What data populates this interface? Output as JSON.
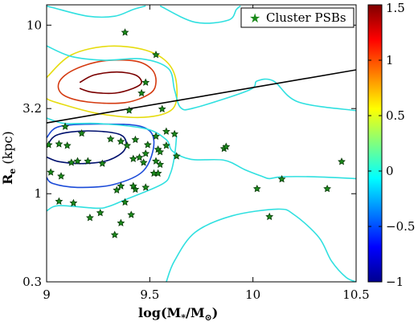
{
  "chart_data": {
    "type": "scatter",
    "x_axis": {
      "label_main": "log(M",
      "label_sub1": "*",
      "label_mid": "/M",
      "label_sub2": "⊙",
      "label_end": ")",
      "range": [
        9.0,
        10.5
      ],
      "ticks": [
        9.0,
        9.5,
        10.0,
        10.5
      ],
      "tick_labels": [
        "9",
        "9.5",
        "10",
        "10.5"
      ]
    },
    "y_axis": {
      "label_main": "R",
      "label_sub": "e",
      "label_end": " (kpc)",
      "scale": "log",
      "range": [
        0.3,
        13.2
      ],
      "ticks": [
        0.3,
        1.0,
        3.2,
        10.0
      ],
      "tick_labels": [
        "0.3",
        "1",
        "3.2",
        "10"
      ]
    },
    "colorbar": {
      "range": [
        -1.0,
        1.5
      ],
      "ticks": [
        -1.0,
        -0.5,
        0.0,
        0.5,
        1.0,
        1.5
      ],
      "tick_labels": [
        "−1",
        "−0.5",
        "0",
        "0.5",
        "1",
        "1.5"
      ],
      "colormap": "jet"
    },
    "legend": {
      "label": "Cluster PSBs",
      "placement": "top-right",
      "marker_color": "#1a8a1a"
    },
    "reference_line": {
      "color": "#000000",
      "points": [
        [
          9.0,
          2.63
        ],
        [
          10.5,
          5.43
        ]
      ]
    },
    "contours": [
      {
        "level": 1.4,
        "color": "#7a0000",
        "points": [
          [
            9.16,
            4.57
          ],
          [
            9.23,
            5.06
          ],
          [
            9.34,
            5.27
          ],
          [
            9.43,
            5.06
          ],
          [
            9.46,
            4.57
          ],
          [
            9.42,
            4.22
          ],
          [
            9.33,
            3.95
          ],
          [
            9.22,
            4.0
          ],
          [
            9.16,
            4.22
          ]
        ]
      },
      {
        "level": 1.2,
        "color": "#d43a10",
        "points": [
          [
            9.06,
            4.57
          ],
          [
            9.13,
            5.42
          ],
          [
            9.27,
            6.12
          ],
          [
            9.43,
            6.12
          ],
          [
            9.51,
            5.46
          ],
          [
            9.53,
            4.57
          ],
          [
            9.5,
            3.92
          ],
          [
            9.38,
            3.47
          ],
          [
            9.2,
            3.5
          ],
          [
            9.08,
            3.86
          ]
        ]
      },
      {
        "level": 0.5,
        "color": "#e6dc10",
        "points": [
          [
            9.0,
            4.89
          ],
          [
            9.12,
            6.66
          ],
          [
            9.3,
            7.5
          ],
          [
            9.48,
            7.1
          ],
          [
            9.59,
            5.92
          ],
          [
            9.63,
            4.44
          ],
          [
            9.61,
            3.18
          ],
          [
            9.47,
            2.84
          ],
          [
            9.25,
            2.99
          ],
          [
            9.05,
            3.47
          ],
          [
            9.0,
            3.66
          ]
        ]
      },
      {
        "level": -0.7,
        "color": "#1a4ad8",
        "points": [
          [
            9.0,
            2.15
          ],
          [
            9.06,
            2.5
          ],
          [
            9.25,
            2.59
          ],
          [
            9.46,
            2.5
          ],
          [
            9.52,
            2.04
          ],
          [
            9.47,
            1.37
          ],
          [
            9.32,
            1.13
          ],
          [
            9.15,
            1.09
          ],
          [
            9.03,
            1.15
          ],
          [
            9.0,
            1.25
          ]
        ]
      },
      {
        "level": -0.9,
        "color": "#00106e",
        "points": [
          [
            9.0,
            1.89
          ],
          [
            9.05,
            2.23
          ],
          [
            9.2,
            2.36
          ],
          [
            9.36,
            2.23
          ],
          [
            9.38,
            1.84
          ],
          [
            9.3,
            1.58
          ],
          [
            9.18,
            1.51
          ],
          [
            9.06,
            1.55
          ],
          [
            9.0,
            1.65
          ]
        ]
      },
      {
        "level": 0.05,
        "color": "#30e0e0",
        "points": [
          [
            9.0,
            7.54
          ],
          [
            9.12,
            6.52
          ],
          [
            9.28,
            6.19
          ],
          [
            9.46,
            6.31
          ],
          [
            9.59,
            5.53
          ],
          [
            9.62,
            4.13
          ],
          [
            9.65,
            3.24
          ],
          [
            9.72,
            3.24
          ],
          [
            9.98,
            4.11
          ],
          [
            10.02,
            4.66
          ],
          [
            10.1,
            4.66
          ],
          [
            10.22,
            3.5
          ],
          [
            10.5,
            3.11
          ]
        ]
      },
      {
        "level": 0.05,
        "color": "#30e0e0",
        "points": [
          [
            9.0,
            2.81
          ],
          [
            9.09,
            2.61
          ],
          [
            9.25,
            2.61
          ],
          [
            9.48,
            2.43
          ],
          [
            9.58,
            2.09
          ],
          [
            9.61,
            1.79
          ],
          [
            9.7,
            1.6
          ],
          [
            9.86,
            1.58
          ],
          [
            9.96,
            1.39
          ],
          [
            10.05,
            1.26
          ],
          [
            10.08,
            1.23
          ],
          [
            10.14,
            1.26
          ],
          [
            10.3,
            1.26
          ],
          [
            10.5,
            1.23
          ]
        ]
      },
      {
        "level": 0.05,
        "color": "#30e0e0",
        "points": [
          [
            9.0,
            13.0
          ],
          [
            9.03,
            12.7
          ],
          [
            9.2,
            11.3
          ],
          [
            9.33,
            11.3
          ],
          [
            9.42,
            12.4
          ],
          [
            9.48,
            13.0
          ]
        ]
      },
      {
        "level": 0.05,
        "color": "#30e0e0",
        "points": [
          [
            9.55,
            13.0
          ],
          [
            9.72,
            10.4
          ],
          [
            9.88,
            10.7
          ],
          [
            9.92,
            12.4
          ],
          [
            9.94,
            13.0
          ]
        ]
      },
      {
        "level": 0.05,
        "color": "#30e0e0",
        "points": [
          [
            9.0,
            0.79
          ],
          [
            9.06,
            0.85
          ],
          [
            9.24,
            0.82
          ],
          [
            9.3,
            0.84
          ],
          [
            9.38,
            0.92
          ],
          [
            9.56,
            1.14
          ],
          [
            9.6,
            1.32
          ],
          [
            9.62,
            1.67
          ],
          [
            9.63,
            2.21
          ]
        ]
      },
      {
        "level": 0.05,
        "color": "#30e0e0",
        "points": [
          [
            9.58,
            0.3
          ],
          [
            9.62,
            0.4
          ],
          [
            9.72,
            0.59
          ],
          [
            9.9,
            0.74
          ],
          [
            10.12,
            0.81
          ],
          [
            10.2,
            0.75
          ],
          [
            10.32,
            0.55
          ],
          [
            10.38,
            0.4
          ],
          [
            10.45,
            0.32
          ],
          [
            10.5,
            0.3
          ]
        ]
      }
    ],
    "points": [
      {
        "x": 9.38,
        "y": 9.05
      },
      {
        "x": 9.53,
        "y": 6.67
      },
      {
        "x": 9.48,
        "y": 4.57
      },
      {
        "x": 9.46,
        "y": 3.95
      },
      {
        "x": 9.56,
        "y": 3.18
      },
      {
        "x": 9.4,
        "y": 3.12
      },
      {
        "x": 9.09,
        "y": 2.5
      },
      {
        "x": 9.17,
        "y": 2.28
      },
      {
        "x": 9.36,
        "y": 2.04
      },
      {
        "x": 9.58,
        "y": 2.34
      },
      {
        "x": 9.62,
        "y": 2.26
      },
      {
        "x": 9.39,
        "y": 1.93
      },
      {
        "x": 9.43,
        "y": 2.09
      },
      {
        "x": 9.31,
        "y": 2.11
      },
      {
        "x": 9.53,
        "y": 2.19
      },
      {
        "x": 9.49,
        "y": 1.95
      },
      {
        "x": 9.01,
        "y": 1.95
      },
      {
        "x": 9.06,
        "y": 1.97
      },
      {
        "x": 9.1,
        "y": 1.93
      },
      {
        "x": 9.48,
        "y": 1.73
      },
      {
        "x": 9.45,
        "y": 1.64
      },
      {
        "x": 9.42,
        "y": 1.61
      },
      {
        "x": 9.47,
        "y": 1.53
      },
      {
        "x": 9.54,
        "y": 1.83
      },
      {
        "x": 9.55,
        "y": 1.77
      },
      {
        "x": 9.58,
        "y": 1.93
      },
      {
        "x": 9.12,
        "y": 1.53
      },
      {
        "x": 9.15,
        "y": 1.56
      },
      {
        "x": 9.2,
        "y": 1.56
      },
      {
        "x": 9.27,
        "y": 1.51
      },
      {
        "x": 9.53,
        "y": 1.56
      },
      {
        "x": 9.55,
        "y": 1.49
      },
      {
        "x": 9.54,
        "y": 1.32
      },
      {
        "x": 9.52,
        "y": 1.32
      },
      {
        "x": 9.63,
        "y": 1.67
      },
      {
        "x": 9.07,
        "y": 1.27
      },
      {
        "x": 9.02,
        "y": 1.34
      },
      {
        "x": 9.36,
        "y": 1.11
      },
      {
        "x": 9.43,
        "y": 1.06
      },
      {
        "x": 9.34,
        "y": 1.05
      },
      {
        "x": 9.42,
        "y": 1.11
      },
      {
        "x": 9.48,
        "y": 1.09
      },
      {
        "x": 9.06,
        "y": 0.9
      },
      {
        "x": 9.13,
        "y": 0.88
      },
      {
        "x": 9.38,
        "y": 0.89
      },
      {
        "x": 9.26,
        "y": 0.77
      },
      {
        "x": 9.41,
        "y": 0.75
      },
      {
        "x": 9.21,
        "y": 0.72
      },
      {
        "x": 9.36,
        "y": 0.67
      },
      {
        "x": 9.33,
        "y": 0.57
      },
      {
        "x": 9.86,
        "y": 1.85
      },
      {
        "x": 9.87,
        "y": 1.9
      },
      {
        "x": 10.02,
        "y": 1.07
      },
      {
        "x": 10.14,
        "y": 1.22
      },
      {
        "x": 10.43,
        "y": 1.55
      },
      {
        "x": 10.36,
        "y": 1.07
      },
      {
        "x": 10.08,
        "y": 0.73
      }
    ]
  }
}
